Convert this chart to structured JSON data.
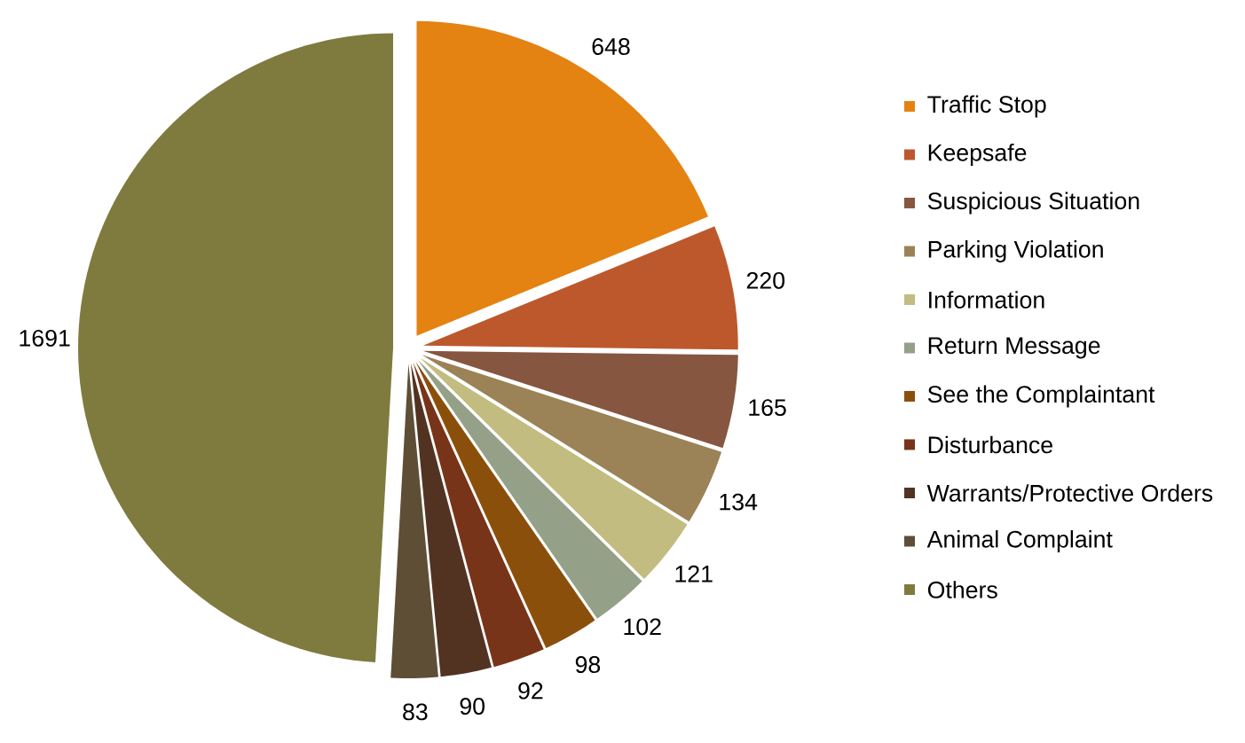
{
  "chart_data": {
    "type": "pie",
    "categories": [
      "Traffic Stop",
      "Keepsafe",
      "Suspicious Situation",
      "Parking Violation",
      "Information",
      "Return Message",
      "See the Complaintant",
      "Disturbance",
      "Warrants/Protective Orders",
      "Animal Complaint",
      "Others"
    ],
    "values": [
      648,
      220,
      165,
      134,
      121,
      102,
      98,
      92,
      90,
      83,
      1691
    ],
    "colors": [
      "#e48312",
      "#bd582c",
      "#865640",
      "#9b8357",
      "#c2bc80",
      "#94a088",
      "#8b4f0c",
      "#783418",
      "#523322",
      "#5e4e35",
      "#7f7b3e"
    ],
    "data_labels": true,
    "legend": "right"
  }
}
